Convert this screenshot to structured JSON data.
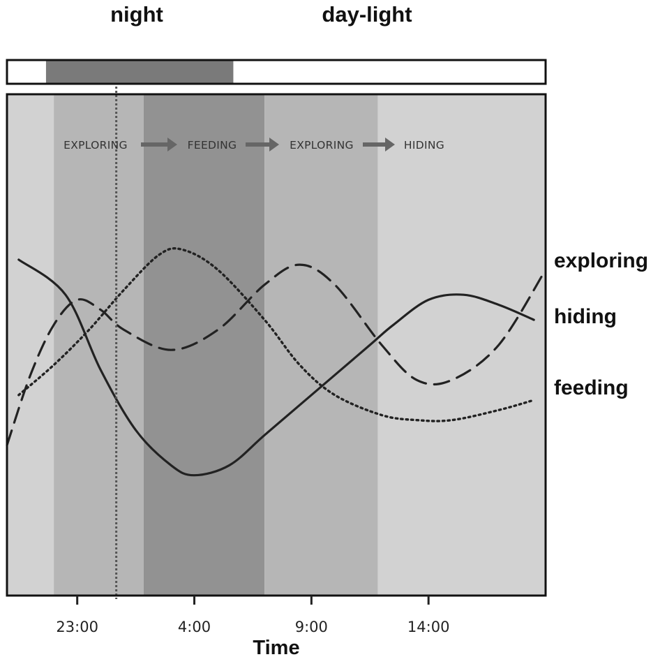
{
  "header": {
    "night_label": "night",
    "daylight_label": "day-light"
  },
  "colors": {
    "night_bar": "#7a7a7a",
    "band_light": "#d2d2d2",
    "band_medium": "#b6b6b6",
    "band_dark": "#929292",
    "line": "#222222"
  },
  "chart_data": {
    "type": "line",
    "title": "",
    "xlabel": "Time",
    "ylabel": "",
    "x_ticks": [
      "23:00",
      "4:00",
      "9:00",
      "14:00"
    ],
    "grid": false,
    "light_cycle": [
      {
        "label": "day-light",
        "start": "20:00",
        "end": "21:40"
      },
      {
        "label": "night",
        "start": "21:40",
        "end": "5:40"
      },
      {
        "label": "day-light",
        "start": "5:40",
        "end": "19:00"
      }
    ],
    "phases": [
      "EXPLORING",
      "FEEDING",
      "EXPLORING",
      "HIDING"
    ],
    "phase_bands": [
      {
        "start": "20:00",
        "end": "22:00",
        "shade": "light"
      },
      {
        "start": "22:00",
        "end": "1:50",
        "shade": "medium"
      },
      {
        "start": "1:50",
        "end": "7:00",
        "shade": "dark"
      },
      {
        "start": "7:00",
        "end": "11:50",
        "shade": "medium"
      },
      {
        "start": "11:50",
        "end": "19:00",
        "shade": "light"
      }
    ],
    "marker_time": "0:40",
    "ylim": [
      0,
      1
    ],
    "series": [
      {
        "name": "hiding",
        "style": "solid",
        "points": [
          [
            "20:30",
            0.67
          ],
          [
            "22:30",
            0.6
          ],
          [
            "0:00",
            0.45
          ],
          [
            "1:30",
            0.33
          ],
          [
            "3:00",
            0.26
          ],
          [
            "4:00",
            0.24
          ],
          [
            "5:30",
            0.26
          ],
          [
            "7:00",
            0.32
          ],
          [
            "9:00",
            0.4
          ],
          [
            "11:30",
            0.5
          ],
          [
            "12:30",
            0.54
          ],
          [
            "14:00",
            0.59
          ],
          [
            "15:30",
            0.6
          ],
          [
            "17:00",
            0.58
          ],
          [
            "18:30",
            0.55
          ]
        ]
      },
      {
        "name": "exploring",
        "style": "dashed",
        "points": [
          [
            "20:00",
            0.3
          ],
          [
            "21:00",
            0.44
          ],
          [
            "22:00",
            0.54
          ],
          [
            "23:00",
            0.59
          ],
          [
            "0:00",
            0.57
          ],
          [
            "1:00",
            0.53
          ],
          [
            "3:00",
            0.49
          ],
          [
            "5:00",
            0.53
          ],
          [
            "7:00",
            0.62
          ],
          [
            "8:30",
            0.66
          ],
          [
            "10:00",
            0.62
          ],
          [
            "12:00",
            0.5
          ],
          [
            "13:30",
            0.43
          ],
          [
            "15:00",
            0.43
          ],
          [
            "17:00",
            0.5
          ],
          [
            "19:00",
            0.65
          ]
        ]
      },
      {
        "name": "feeding",
        "style": "dotted",
        "points": [
          [
            "20:30",
            0.4
          ],
          [
            "22:00",
            0.46
          ],
          [
            "23:30",
            0.53
          ],
          [
            "1:00",
            0.61
          ],
          [
            "2:30",
            0.68
          ],
          [
            "3:30",
            0.69
          ],
          [
            "5:00",
            0.65
          ],
          [
            "7:00",
            0.55
          ],
          [
            "8:30",
            0.46
          ],
          [
            "10:00",
            0.4
          ],
          [
            "12:00",
            0.36
          ],
          [
            "13:30",
            0.35
          ],
          [
            "15:00",
            0.35
          ],
          [
            "17:00",
            0.37
          ],
          [
            "18:30",
            0.39
          ]
        ]
      }
    ]
  }
}
